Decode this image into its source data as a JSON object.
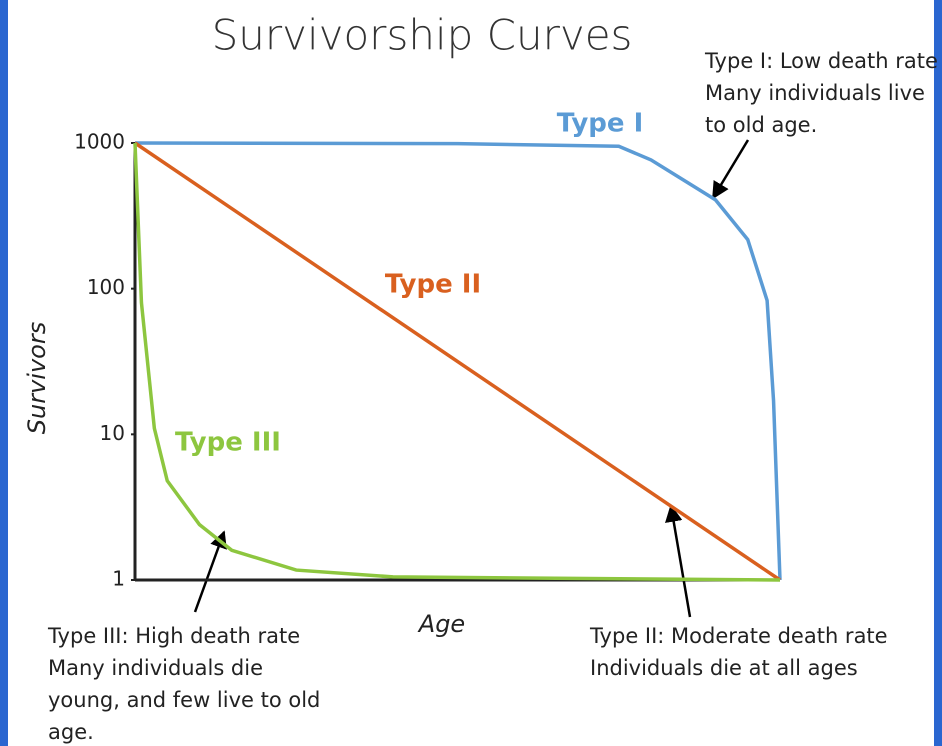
{
  "chart_data": {
    "type": "line",
    "title": "Survivorship Curves",
    "xlabel": "Age",
    "ylabel": "Survivors",
    "log_y": true,
    "xlim": [
      0,
      100
    ],
    "ylim": [
      1,
      1000
    ],
    "yticks": [
      1,
      10,
      100,
      1000
    ],
    "series": [
      {
        "name": "Type I",
        "color": "#5b9bd5",
        "x": [
          0,
          50,
          75,
          80,
          85,
          90,
          95,
          98,
          99,
          100
        ],
        "values": [
          1000,
          990,
          950,
          765,
          558,
          407,
          217,
          83,
          17,
          1
        ]
      },
      {
        "name": "Type II",
        "color": "#d9601f",
        "x": [
          0,
          100
        ],
        "values": [
          1000,
          1
        ]
      },
      {
        "name": "Type III",
        "color": "#8dc63f",
        "x": [
          0,
          1,
          3,
          5,
          10,
          15,
          25,
          40,
          100
        ],
        "values": [
          1000,
          80,
          11,
          4.8,
          2.4,
          1.6,
          1.17,
          1.05,
          1
        ]
      }
    ],
    "annotations": [
      {
        "lines": [
          "Type I: Low death rate",
          "Many individuals live",
          "to old age."
        ]
      },
      {
        "lines": [
          "Type III: High death rate",
          "Many individuals die",
          "young, and few live to old",
          "age."
        ]
      },
      {
        "lines": [
          "Type II: Moderate death rate",
          "Individuals die at all ages"
        ]
      }
    ]
  }
}
